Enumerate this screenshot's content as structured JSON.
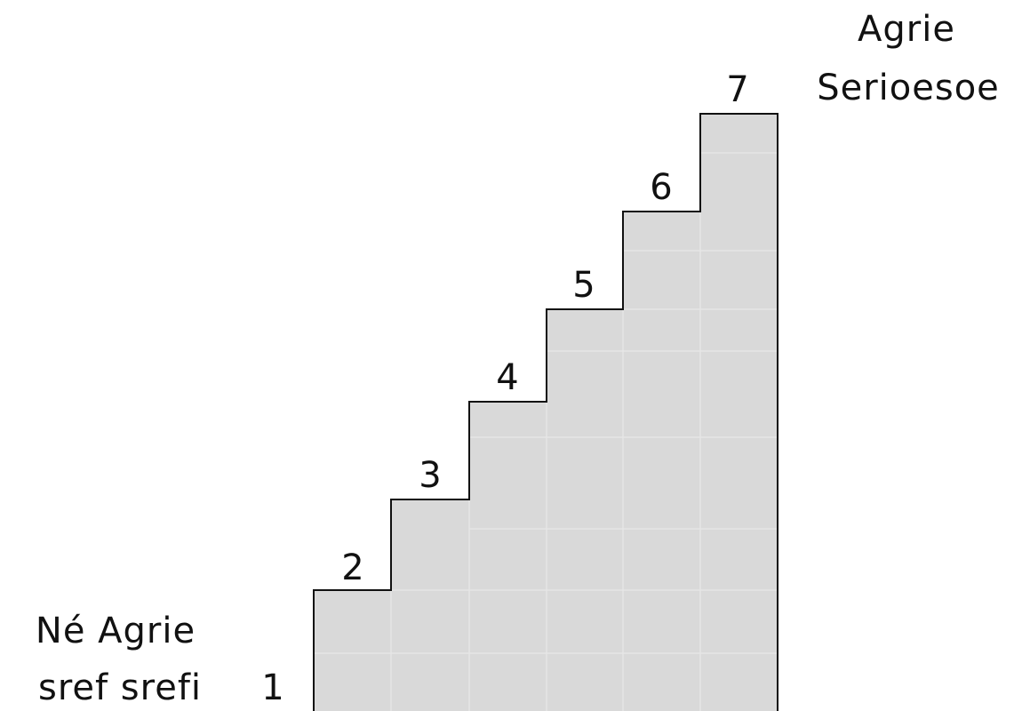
{
  "diagram": {
    "fill_color": "#d9d9d9",
    "outline_color": "#111111",
    "inner_grid_color": "#e6e6e6",
    "background_color": "#ffffff",
    "steps": [
      {
        "number": "1"
      },
      {
        "number": "2"
      },
      {
        "number": "3"
      },
      {
        "number": "4"
      },
      {
        "number": "5"
      },
      {
        "number": "6"
      },
      {
        "number": "7"
      }
    ],
    "start_label": {
      "line1": "Né Agrie",
      "line2": "sref srefi"
    },
    "end_label": {
      "line1": "Agrie",
      "line2": "Serioesoe"
    }
  }
}
